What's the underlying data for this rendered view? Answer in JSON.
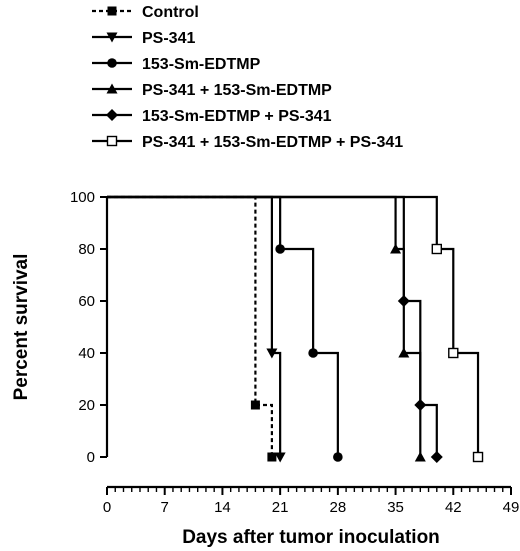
{
  "chart_data": {
    "type": "line",
    "subtype": "kaplan-meier survival",
    "xlabel": "Days after tumor inoculation",
    "ylabel": "Percent survival",
    "xlim": [
      0,
      49
    ],
    "ylim": [
      0,
      100
    ],
    "x_ticks": [
      0,
      7,
      14,
      21,
      28,
      35,
      42,
      49
    ],
    "y_ticks": [
      0,
      20,
      40,
      60,
      80,
      100
    ],
    "grid": false,
    "legend_position": "top-left",
    "series": [
      {
        "name": "Control",
        "marker": "square-filled",
        "line": "dashed",
        "start": 100,
        "steps": [
          [
            18,
            20
          ],
          [
            20,
            0
          ]
        ],
        "points": [
          [
            18,
            20
          ],
          [
            20,
            0
          ]
        ]
      },
      {
        "name": "PS-341",
        "marker": "triangle-down",
        "line": "solid",
        "start": 100,
        "steps": [
          [
            20,
            40
          ],
          [
            21,
            0
          ]
        ],
        "points": [
          [
            20,
            40
          ],
          [
            21,
            0
          ]
        ]
      },
      {
        "name": "153-Sm-EDTMP",
        "marker": "circle",
        "line": "solid",
        "start": 100,
        "steps": [
          [
            21,
            80
          ],
          [
            25,
            40
          ],
          [
            28,
            0
          ]
        ],
        "points": [
          [
            21,
            80
          ],
          [
            25,
            40
          ],
          [
            28,
            0
          ]
        ]
      },
      {
        "name": "PS-341 + 153-Sm-EDTMP",
        "marker": "triangle-up",
        "line": "solid",
        "start": 100,
        "steps": [
          [
            35,
            80
          ],
          [
            36,
            40
          ],
          [
            38,
            0
          ]
        ],
        "points": [
          [
            35,
            80
          ],
          [
            36,
            40
          ],
          [
            38,
            0
          ]
        ]
      },
      {
        "name": "153-Sm-EDTMP + PS-341",
        "marker": "diamond",
        "line": "solid",
        "start": 100,
        "steps": [
          [
            36,
            60
          ],
          [
            38,
            20
          ],
          [
            40,
            0
          ]
        ],
        "points": [
          [
            36,
            60
          ],
          [
            38,
            20
          ],
          [
            40,
            0
          ]
        ]
      },
      {
        "name": "PS-341 + 153-Sm-EDTMP + PS-341",
        "marker": "square-open",
        "line": "solid",
        "start": 100,
        "steps": [
          [
            40,
            80
          ],
          [
            42,
            40
          ],
          [
            45,
            0
          ]
        ],
        "points": [
          [
            40,
            80
          ],
          [
            42,
            40
          ],
          [
            45,
            0
          ]
        ]
      }
    ]
  }
}
